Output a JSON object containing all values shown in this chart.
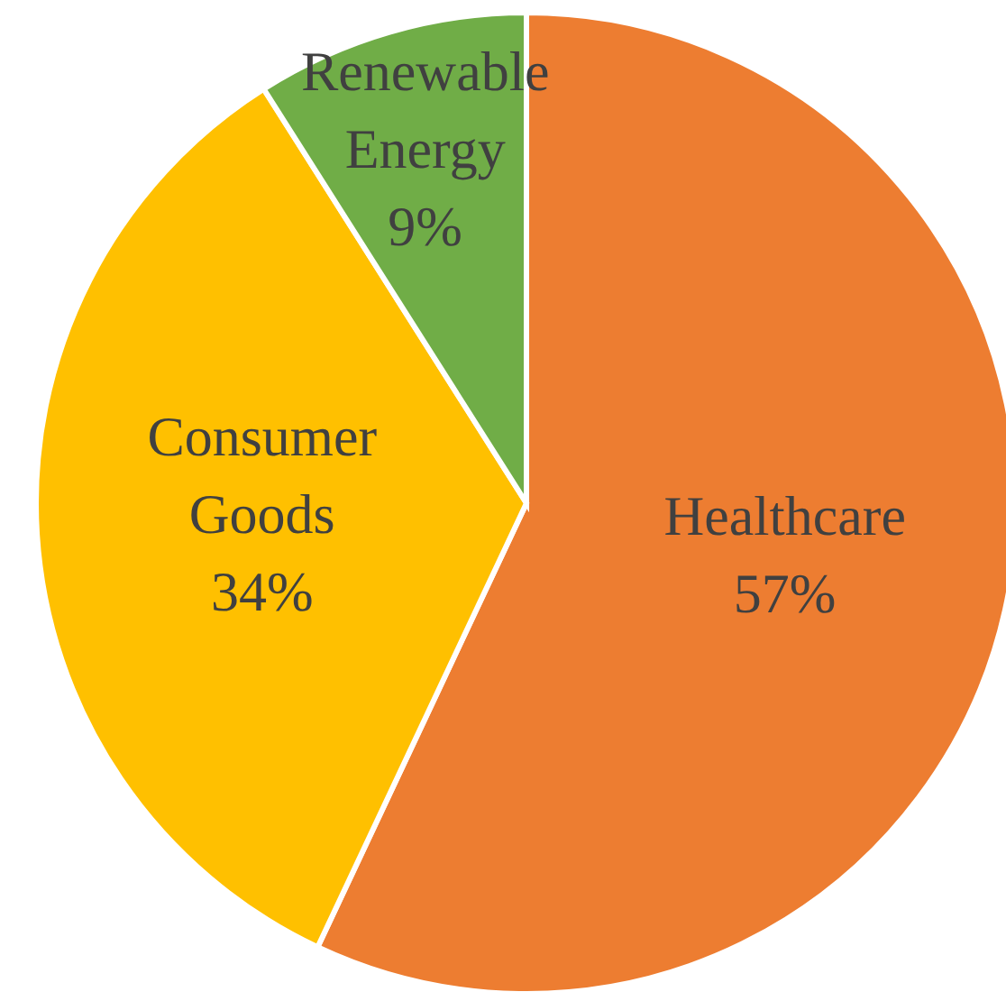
{
  "chart_data": {
    "type": "pie",
    "categories": [
      "Healthcare",
      "Consumer Goods",
      "Renewable Energy"
    ],
    "values": [
      57,
      34,
      9
    ],
    "colors": [
      "#ed7d31",
      "#ffc000",
      "#70ad47"
    ],
    "value_labels": [
      "57%",
      "34%",
      "9%"
    ]
  }
}
